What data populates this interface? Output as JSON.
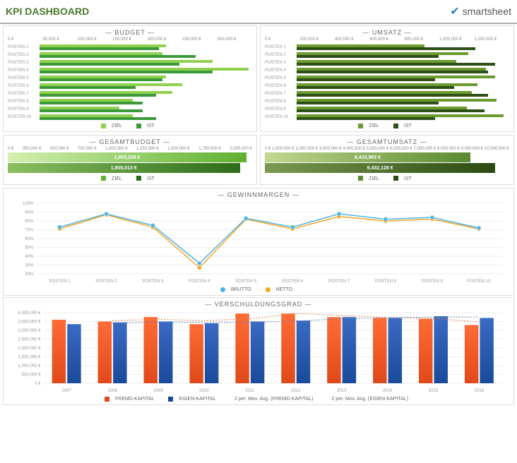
{
  "header": {
    "title": "KPI DASHBOARD",
    "brand": "smartsheet"
  },
  "budget": {
    "title": "BUDGET",
    "categories": [
      "POSTEN 1",
      "POSTEN 2",
      "POSTEN 3",
      "POSTEN 4",
      "POSTEN 5",
      "POSTEN 6",
      "POSTEN 7",
      "POSTEN 8",
      "POSTEN 9",
      "POSTEN 10"
    ],
    "ziel": [
      190000,
      185000,
      260000,
      315000,
      190000,
      215000,
      200000,
      140000,
      120000,
      140000
    ],
    "ist": [
      180000,
      235000,
      210000,
      260000,
      185000,
      145000,
      175000,
      155000,
      155000,
      175000
    ],
    "xticks": [
      "0 €",
      "50,000 €",
      "100,000 €",
      "150,000 €",
      "200,000 €",
      "250,000 €",
      "300,000 €"
    ],
    "xmax": 320000,
    "ziel_color": "#8fd14f",
    "ist_color": "#3a9a3a",
    "legend": {
      "ziel": "ZIEL",
      "ist": "IST"
    }
  },
  "umsatz": {
    "title": "UMSATZ",
    "categories": [
      "POSTEN 1",
      "POSTEN 2",
      "POSTEN 3",
      "POSTEN 4",
      "POSTEN 5",
      "POSTEN 6",
      "POSTEN 7",
      "POSTEN 8",
      "POSTEN 9",
      "POSTEN 10"
    ],
    "ziel": [
      720000,
      970000,
      900000,
      1070000,
      1120000,
      1020000,
      990000,
      1130000,
      960000,
      1170000
    ],
    "ist": [
      1010000,
      800000,
      1120000,
      1080000,
      780000,
      890000,
      1080000,
      800000,
      1060000,
      780000
    ],
    "xticks": [
      "0 €",
      "200,000 €",
      "400,000 €",
      "600,000 €",
      "800,000 €",
      "1,000,000 €",
      "1,200,000 €"
    ],
    "xmax": 1200000,
    "ziel_color": "#6b9a2f",
    "ist_color": "#2d5016",
    "legend": {
      "ziel": "ZIEL",
      "ist": "IST"
    }
  },
  "gesamtbudget": {
    "title": "GESAMTBUDGET",
    "xticks": [
      "0 €",
      "250,000 €",
      "500,000 €",
      "750,000 €",
      "1,000,000 €",
      "1,250,000 €",
      "1,500,000 €",
      "1,750,000 €",
      "2,000,000 €"
    ],
    "xmax": 2000000,
    "ziel": {
      "value": 1953339,
      "label": "1,953,339 €",
      "grad_from": "#d4f0b0",
      "grad_to": "#5fb030"
    },
    "ist": {
      "value": 1900013,
      "label": "1,900,013 €",
      "grad_from": "#8ac060",
      "grad_to": "#2d6b1a"
    },
    "legend": {
      "ziel": "ZIEL",
      "ist": "IST"
    }
  },
  "gesamtumsatz": {
    "title": "GESAMTUMSATZ",
    "xticks": [
      "0 €",
      "1,000,000 €",
      "2,000,000 €",
      "3,000,000 €",
      "4,000,000 €",
      "5,000,000 €",
      "6,000,000 €",
      "7,000,000 €",
      "8,000,000 €",
      "9,000,000 €",
      "10,000,000 €"
    ],
    "xmax": 10000000,
    "ziel": {
      "value": 8410963,
      "label": "8,410,963 €",
      "grad_from": "#c0d890",
      "grad_to": "#5a8a30"
    },
    "ist": {
      "value": 9432128,
      "label": "9,432,128 €",
      "grad_from": "#7a9a50",
      "grad_to": "#2a4a10"
    },
    "legend": {
      "ziel": "ZIEL",
      "ist": "IST"
    }
  },
  "gewinnmargen": {
    "title": "GEWINNMARGEN",
    "categories": [
      "POSTEN 1",
      "POSTEN 2",
      "POSTEN 3",
      "POSTEN 4",
      "POSTEN 5",
      "POSTEN 6",
      "POSTEN 7",
      "POSTEN 8",
      "POSTEN 9",
      "POSTEN 10"
    ],
    "brutto": [
      73,
      88,
      75,
      32,
      83,
      73,
      88,
      82,
      84,
      72
    ],
    "netto": [
      71,
      87,
      73,
      27,
      82,
      71,
      85,
      80,
      82,
      71
    ],
    "yticks": [
      "20%",
      "30%",
      "40%",
      "50%",
      "60%",
      "70%",
      "80%",
      "90%",
      "100%"
    ],
    "ymin": 20,
    "ymax": 100,
    "brutto_color": "#4ab4e6",
    "netto_color": "#f5a623",
    "grid_color": "#dddddd",
    "legend": {
      "brutto": "BRUTTO",
      "netto": "NETTO"
    }
  },
  "verschuldung": {
    "title": "VERSCHULDUNGSGRAD",
    "categories": [
      "2007",
      "2008",
      "2009",
      "2010",
      "2011",
      "2012",
      "2013",
      "2014",
      "2015",
      "2016"
    ],
    "fremd": [
      3600000,
      3500000,
      3750000,
      3350000,
      3950000,
      3950000,
      3750000,
      3700000,
      3650000,
      3300000
    ],
    "eigen": [
      3350000,
      3450000,
      3500000,
      3400000,
      3500000,
      3550000,
      3750000,
      3700000,
      3800000,
      3700000
    ],
    "yticks": [
      "0 €",
      "500,000 €",
      "1,000,000 €",
      "1,500,000 €",
      "2,000,000 €",
      "2,500,000 €",
      "3,000,000 €",
      "3,500,000 €",
      "4,000,000 €"
    ],
    "ymax": 4000000,
    "fremd_grad_from": "#ff6b35",
    "fremd_grad_to": "#e04a1a",
    "eigen_grad_from": "#3a6bc4",
    "eigen_grad_to": "#1a4a9a",
    "ma_fremd_color": "#e08050",
    "ma_eigen_color": "#6080b0",
    "grid_color": "#dddddd",
    "legend": {
      "fremd": "FREMD-KAPITAL",
      "eigen": "EIGEN-KAPITAL",
      "ma_fremd": "2 per. Mov. Avg. (FREMD-KAPITAL)",
      "ma_eigen": "2 per. Mov. Avg. (EIGEN-KAPITAL)"
    }
  }
}
